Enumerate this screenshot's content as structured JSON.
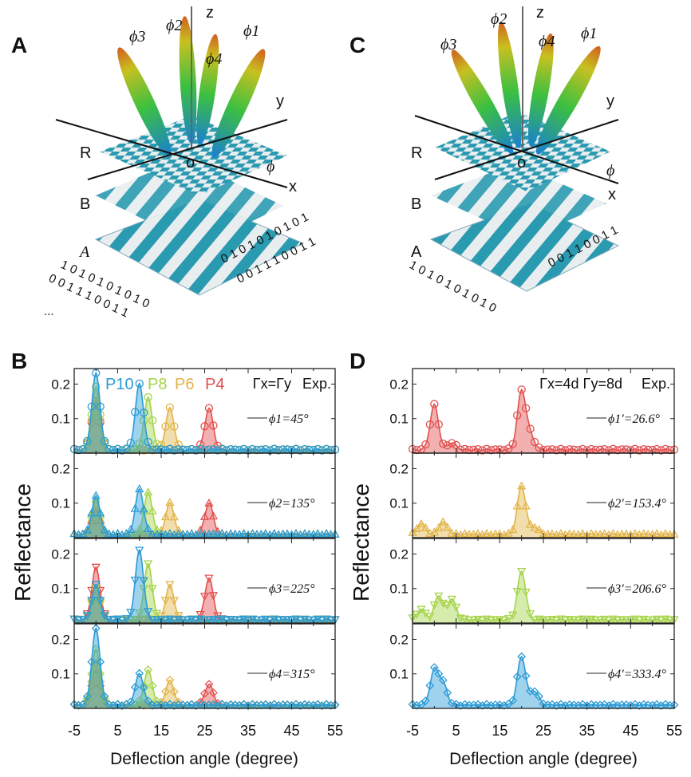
{
  "illustrations": [
    {
      "panel_letter": "A",
      "axes": {
        "x": "x",
        "y": "y",
        "z": "z",
        "origin": "o"
      },
      "layers": [
        "R",
        "B",
        "A"
      ],
      "lobes": [
        "ϕ1",
        "ϕ2",
        "ϕ3",
        "ϕ4"
      ],
      "angle": "ϕ",
      "code_top": "0 1 0 1 0 1 0 1 0 1",
      "code_top2": "0 0 1 1 1 0 0 1 1",
      "code_bottom": "1 0 1 0 1 0 1 0 1 0",
      "code_bottom2": "0 0 1 1 1 0 0 1 1",
      "ellipsis": "..."
    },
    {
      "panel_letter": "C",
      "axes": {
        "x": "x",
        "y": "y",
        "z": "z",
        "origin": "o"
      },
      "layers": [
        "R",
        "B",
        "A"
      ],
      "lobes": [
        "ϕ1",
        "ϕ2",
        "ϕ3",
        "ϕ4"
      ],
      "angle": "ϕ",
      "code_top": "0 0 1 1 0 0 1 1",
      "code_bottom": "1 0 1 0 1 0 1 0 1 0"
    }
  ],
  "chart_data": [
    {
      "type": "line",
      "panel_letter": "B",
      "ylabel": "Reflectance",
      "xlabel": "Deflection angle (degree)",
      "xlim": [
        -5,
        55
      ],
      "ylim": [
        0,
        0.245
      ],
      "xticks": [
        "-5",
        "5",
        "15",
        "25",
        "35",
        "45",
        "55"
      ],
      "yticks": [
        "0.1",
        "0.2"
      ],
      "legend": [
        {
          "name": "P10",
          "color": "#2b9bd6"
        },
        {
          "name": "P8",
          "color": "#a5d44a"
        },
        {
          "name": "P6",
          "color": "#e2b448"
        },
        {
          "name": "P4",
          "color": "#e25050"
        }
      ],
      "annotation": "Γx=Γy",
      "exp_label": "Exp.",
      "subplots": [
        {
          "label": "ϕ1=45°",
          "marker": "circle",
          "series": [
            {
              "name": "P4",
              "peaks": [
                [
                  0,
                  0.14
                ],
                [
                  26,
                  0.12
                ]
              ]
            },
            {
              "name": "P6",
              "peaks": [
                [
                  0,
                  0.15
                ],
                [
                  17,
                  0.12
                ]
              ]
            },
            {
              "name": "P8",
              "peaks": [
                [
                  0,
                  0.18
                ],
                [
                  12,
                  0.15
                ]
              ]
            },
            {
              "name": "P10",
              "peaks": [
                [
                  0,
                  0.22
                ],
                [
                  10,
                  0.19
                ]
              ]
            }
          ]
        },
        {
          "label": "ϕ2=135°",
          "marker": "triangle-up",
          "series": [
            {
              "name": "P4",
              "peaks": [
                [
                  0,
                  0.07
                ],
                [
                  26,
                  0.09
                ]
              ]
            },
            {
              "name": "P6",
              "peaks": [
                [
                  0,
                  0.08
                ],
                [
                  17,
                  0.09
                ]
              ]
            },
            {
              "name": "P8",
              "peaks": [
                [
                  0,
                  0.1
                ],
                [
                  12,
                  0.12
                ]
              ]
            },
            {
              "name": "P10",
              "peaks": [
                [
                  0,
                  0.11
                ],
                [
                  10,
                  0.13
                ]
              ]
            }
          ]
        },
        {
          "label": "ϕ3=225°",
          "marker": "triangle-down",
          "series": [
            {
              "name": "P4",
              "peaks": [
                [
                  0,
                  0.15
                ],
                [
                  26,
                  0.12
                ]
              ]
            },
            {
              "name": "P6",
              "peaks": [
                [
                  0,
                  0.08
                ],
                [
                  17,
                  0.1
                ]
              ]
            },
            {
              "name": "P8",
              "peaks": [
                [
                  0,
                  0.09
                ],
                [
                  12,
                  0.16
                ]
              ]
            },
            {
              "name": "P10",
              "peaks": [
                [
                  0,
                  0.1
                ],
                [
                  10,
                  0.2
                ]
              ]
            }
          ]
        },
        {
          "label": "ϕ4=315°",
          "marker": "diamond",
          "series": [
            {
              "name": "P4",
              "peaks": [
                [
                  0,
                  0.1
                ],
                [
                  26,
                  0.06
                ]
              ]
            },
            {
              "name": "P6",
              "peaks": [
                [
                  0,
                  0.12
                ],
                [
                  17,
                  0.07
                ]
              ]
            },
            {
              "name": "P8",
              "peaks": [
                [
                  0,
                  0.16
                ],
                [
                  12,
                  0.1
                ]
              ]
            },
            {
              "name": "P10",
              "peaks": [
                [
                  0,
                  0.22
                ],
                [
                  10,
                  0.09
                ]
              ]
            }
          ]
        }
      ]
    },
    {
      "type": "line",
      "panel_letter": "D",
      "ylabel": "Reflectance",
      "xlabel": "Deflection angle (degree)",
      "xlim": [
        -5,
        55
      ],
      "ylim": [
        0,
        0.245
      ],
      "xticks": [
        "-5",
        "5",
        "15",
        "25",
        "35",
        "45",
        "55"
      ],
      "yticks": [
        "0.1",
        "0.2"
      ],
      "annotation": "Γx=4d  Γy=8d",
      "exp_label": "Exp.",
      "subplots": [
        {
          "label": "ϕ1'=26.6°",
          "marker": "circle",
          "series": [
            {
              "name": "ϕ1'",
              "color": "#e25050",
              "peaks": [
                [
                  0,
                  0.13
                ],
                [
                  4,
                  0.02
                ],
                [
                  20,
                  0.17
                ],
                [
                  22,
                  0.04
                ]
              ]
            }
          ]
        },
        {
          "label": "ϕ2'=153.4°",
          "marker": "triangle-up",
          "series": [
            {
              "name": "ϕ2'",
              "color": "#e2b448",
              "peaks": [
                [
                  -3,
                  0.03
                ],
                [
                  2,
                  0.035
                ],
                [
                  20,
                  0.14
                ],
                [
                  23,
                  0.02
                ]
              ]
            }
          ]
        },
        {
          "label": "ϕ3'=206.6°",
          "marker": "triangle-down",
          "series": [
            {
              "name": "ϕ3'",
              "color": "#a5d44a",
              "peaks": [
                [
                  -3,
                  0.03
                ],
                [
                  1,
                  0.07
                ],
                [
                  4,
                  0.06
                ],
                [
                  20,
                  0.14
                ]
              ]
            }
          ]
        },
        {
          "label": "ϕ4'=333.4°",
          "marker": "diamond",
          "series": [
            {
              "name": "ϕ4'",
              "color": "#2b9bd6",
              "peaks": [
                [
                  0,
                  0.1
                ],
                [
                  2,
                  0.06
                ],
                [
                  20,
                  0.14
                ],
                [
                  23,
                  0.04
                ]
              ]
            }
          ]
        }
      ]
    }
  ]
}
